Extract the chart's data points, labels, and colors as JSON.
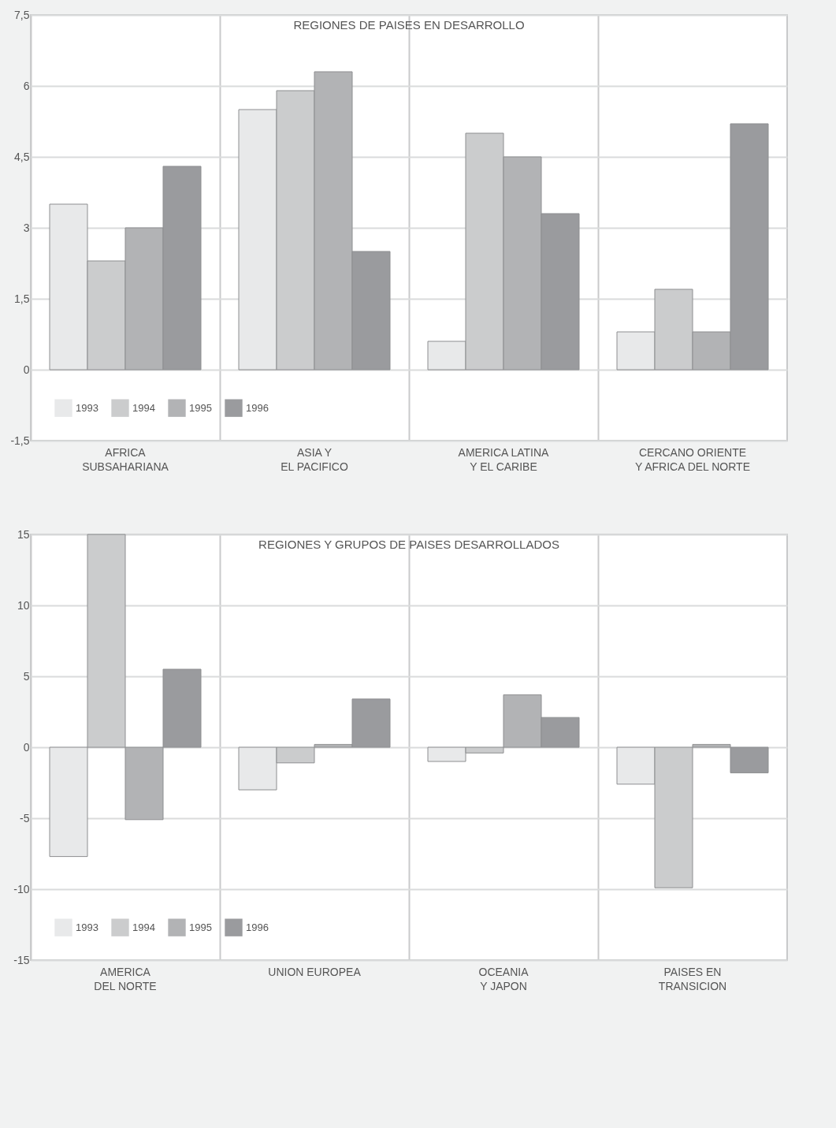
{
  "chart_data": [
    {
      "type": "bar",
      "title": "REGIONES DE PAISES EN DESARROLLO",
      "categories": [
        "AFRICA\nSUBSAHARIANA",
        "ASIA Y\nEL PACIFICO",
        "AMERICA LATINA\nY EL CARIBE",
        "CERCANO ORIENTE\nY AFRICA DEL NORTE"
      ],
      "series": [
        {
          "name": "1993",
          "color": "#e8e9ea",
          "values": [
            3.5,
            5.5,
            0.6,
            0.8
          ]
        },
        {
          "name": "1994",
          "color": "#cbcccd",
          "values": [
            2.3,
            5.9,
            5.0,
            1.7
          ]
        },
        {
          "name": "1995",
          "color": "#b2b3b5",
          "values": [
            3.0,
            6.3,
            4.5,
            0.8
          ]
        },
        {
          "name": "1996",
          "color": "#9a9b9e",
          "values": [
            4.3,
            2.5,
            3.3,
            5.2
          ]
        }
      ],
      "ylim": [
        -1.5,
        7.5
      ],
      "yticks": [
        {
          "value": -1.5,
          "label": "-1,5"
        },
        0,
        {
          "value": 1.5,
          "label": "1,5"
        },
        3,
        {
          "value": 4.5,
          "label": "4,5"
        },
        6,
        {
          "value": 7.5,
          "label": "7,5"
        }
      ],
      "grid": true,
      "legend": "bottom left"
    },
    {
      "type": "bar",
      "title": "REGIONES Y GRUPOS DE PAISES DESARROLLADOS",
      "categories": [
        "AMERICA\nDEL NORTE",
        "UNION EUROPEA",
        "OCEANIA\nY JAPON",
        "PAISES EN\nTRANSICION"
      ],
      "series": [
        {
          "name": "1993",
          "color": "#e8e9ea",
          "values": [
            -7.7,
            -3.0,
            -1.0,
            -2.6
          ]
        },
        {
          "name": "1994",
          "color": "#cbcccd",
          "values": [
            15,
            -1.1,
            -0.4,
            -9.9
          ]
        },
        {
          "name": "1995",
          "color": "#b2b3b5",
          "values": [
            -5.1,
            0.2,
            3.7,
            0.2
          ]
        },
        {
          "name": "1996",
          "color": "#9a9b9e",
          "values": [
            5.5,
            3.4,
            2.1,
            -1.8
          ]
        }
      ],
      "ylim": [
        -15,
        15
      ],
      "yticks": [
        -15,
        -10,
        -5,
        0,
        5,
        10,
        15
      ],
      "grid": true,
      "legend": "bottom left"
    }
  ]
}
